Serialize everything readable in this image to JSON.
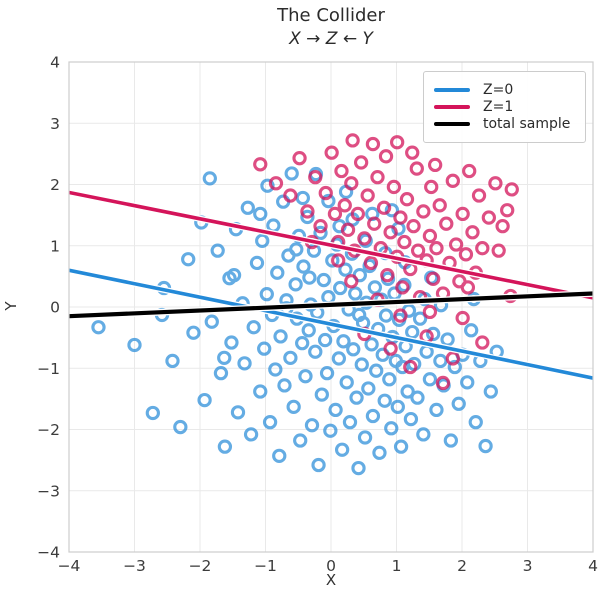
{
  "title": "The Collider",
  "subtitle": "X → Z ← Y",
  "chart_data": {
    "type": "scatter",
    "title": "The Collider",
    "subtitle": "X → Z ← Y",
    "xlabel": "X",
    "ylabel": "Y",
    "xlim": [
      -4,
      4
    ],
    "ylim": [
      -4,
      4
    ],
    "xticks": [
      -4,
      -3,
      -2,
      -1,
      0,
      1,
      2,
      3,
      4
    ],
    "yticks": [
      -4,
      -3,
      -2,
      -1,
      0,
      1,
      2,
      3,
      4
    ],
    "xtick_labels": [
      "−4",
      "−3",
      "−2",
      "−1",
      "0",
      "1",
      "2",
      "3",
      "4"
    ],
    "ytick_labels": [
      "−4",
      "−3",
      "−2",
      "−1",
      "0",
      "1",
      "2",
      "3",
      "4"
    ],
    "grid": true,
    "legend_position": "upper right",
    "colors": {
      "background": "#ffffff",
      "grid": "#e9e9e9",
      "spine": "#cdcdcd",
      "text": "#2b2b2b",
      "tick_text": "#3c3c3c",
      "blue": "#2389d8",
      "crimson": "#d4145a",
      "black": "#000000",
      "legend_border": "#cccccc"
    },
    "marker": {
      "shape": "open-circle",
      "radius": 5.6,
      "stroke_width": 3.1
    },
    "series": [
      {
        "name": "Z=0",
        "color": "#2389d8",
        "marker_opacity": 0.7,
        "points": [
          [
            -3.55,
            -0.33
          ],
          [
            -3.0,
            -0.62
          ],
          [
            -2.72,
            -1.73
          ],
          [
            -2.55,
            0.31
          ],
          [
            -2.42,
            -0.88
          ],
          [
            -2.3,
            -1.96
          ],
          [
            -2.18,
            0.78
          ],
          [
            -2.1,
            -0.42
          ],
          [
            -1.98,
            1.38
          ],
          [
            -1.93,
            -1.52
          ],
          [
            -1.85,
            2.1
          ],
          [
            -1.82,
            -0.24
          ],
          [
            -1.73,
            0.92
          ],
          [
            -1.68,
            -1.08
          ],
          [
            -1.62,
            -2.28
          ],
          [
            -1.55,
            0.47
          ],
          [
            -1.52,
            -0.58
          ],
          [
            -1.45,
            1.27
          ],
          [
            -1.42,
            -1.72
          ],
          [
            -1.35,
            0.06
          ],
          [
            -1.32,
            -0.92
          ],
          [
            -1.27,
            1.62
          ],
          [
            -1.22,
            -2.08
          ],
          [
            -1.18,
            -0.33
          ],
          [
            -1.13,
            0.72
          ],
          [
            -1.08,
            -1.38
          ],
          [
            -1.05,
            1.08
          ],
          [
            -1.02,
            -0.68
          ],
          [
            -0.98,
            0.21
          ],
          [
            -0.97,
            1.98
          ],
          [
            -0.93,
            -1.88
          ],
          [
            -0.9,
            -0.13
          ],
          [
            -0.88,
            1.33
          ],
          [
            -0.85,
            -1.02
          ],
          [
            -0.82,
            0.56
          ],
          [
            -0.79,
            -2.43
          ],
          [
            -0.77,
            -0.48
          ],
          [
            -0.73,
            1.72
          ],
          [
            -0.71,
            -1.28
          ],
          [
            -0.68,
            0.11
          ],
          [
            -0.65,
            0.84
          ],
          [
            -0.62,
            -0.83
          ],
          [
            -0.6,
            2.18
          ],
          [
            -0.57,
            -1.63
          ],
          [
            -0.54,
            0.37
          ],
          [
            -0.52,
            -0.19
          ],
          [
            -0.49,
            1.16
          ],
          [
            -0.47,
            -2.18
          ],
          [
            -0.44,
            -0.59
          ],
          [
            -0.42,
            0.66
          ],
          [
            -0.39,
            -1.13
          ],
          [
            -0.36,
            1.47
          ],
          [
            -0.34,
            -0.38
          ],
          [
            -0.31,
            0.04
          ],
          [
            -0.29,
            -1.93
          ],
          [
            -0.26,
            0.92
          ],
          [
            -0.24,
            -0.73
          ],
          [
            -0.21,
            -0.09
          ],
          [
            -0.19,
            -2.58
          ],
          [
            -0.16,
            1.21
          ],
          [
            -0.14,
            -1.43
          ],
          [
            -0.11,
            0.44
          ],
          [
            -0.09,
            -0.54
          ],
          [
            -0.06,
            -1.08
          ],
          [
            -0.04,
            0.16
          ],
          [
            -0.01,
            -2.02
          ],
          [
            0.02,
            0.76
          ],
          [
            0.04,
            -0.31
          ],
          [
            0.07,
            -1.68
          ],
          [
            0.09,
            1.02
          ],
          [
            0.12,
            -0.84
          ],
          [
            0.14,
            0.31
          ],
          [
            0.17,
            -2.33
          ],
          [
            0.19,
            -0.56
          ],
          [
            0.22,
            0.61
          ],
          [
            0.24,
            -1.23
          ],
          [
            0.27,
            -0.04
          ],
          [
            0.29,
            -1.88
          ],
          [
            0.32,
            0.87
          ],
          [
            0.34,
            -0.69
          ],
          [
            0.37,
            0.22
          ],
          [
            0.39,
            -1.48
          ],
          [
            0.42,
            -2.63
          ],
          [
            0.44,
            0.52
          ],
          [
            0.47,
            -0.94
          ],
          [
            0.49,
            -0.26
          ],
          [
            0.52,
            -2.13
          ],
          [
            0.54,
            0.07
          ],
          [
            0.57,
            -1.33
          ],
          [
            0.59,
            0.67
          ],
          [
            0.62,
            -0.61
          ],
          [
            0.64,
            -1.78
          ],
          [
            0.67,
            0.32
          ],
          [
            0.69,
            -1.04
          ],
          [
            0.72,
            -0.36
          ],
          [
            0.74,
            -2.38
          ],
          [
            0.77,
            0.12
          ],
          [
            0.79,
            -0.78
          ],
          [
            0.82,
            -1.53
          ],
          [
            0.84,
            -0.14
          ],
          [
            0.87,
            0.46
          ],
          [
            0.89,
            -1.18
          ],
          [
            0.92,
            -1.98
          ],
          [
            0.94,
            -0.49
          ],
          [
            0.97,
            0.22
          ],
          [
            0.99,
            -0.88
          ],
          [
            1.02,
            -1.63
          ],
          [
            1.04,
            -0.21
          ],
          [
            1.07,
            -2.28
          ],
          [
            1.09,
            -0.98
          ],
          [
            1.12,
            0.36
          ],
          [
            1.14,
            -0.64
          ],
          [
            1.17,
            -1.38
          ],
          [
            1.19,
            -0.06
          ],
          [
            1.22,
            -1.83
          ],
          [
            1.24,
            -0.41
          ],
          [
            1.27,
            -0.93
          ],
          [
            1.32,
            -1.48
          ],
          [
            1.36,
            -0.19
          ],
          [
            1.41,
            -2.08
          ],
          [
            1.46,
            -0.73
          ],
          [
            1.51,
            -1.18
          ],
          [
            1.56,
            -0.44
          ],
          [
            1.61,
            -1.68
          ],
          [
            1.67,
            -0.88
          ],
          [
            1.72,
            -1.28
          ],
          [
            1.78,
            -0.53
          ],
          [
            1.83,
            -2.18
          ],
          [
            1.89,
            -0.98
          ],
          [
            1.95,
            -1.58
          ],
          [
            2.01,
            -0.78
          ],
          [
            2.08,
            -1.23
          ],
          [
            2.14,
            -0.38
          ],
          [
            2.21,
            -1.88
          ],
          [
            2.28,
            -0.88
          ],
          [
            2.36,
            -2.27
          ],
          [
            2.44,
            -1.38
          ],
          [
            2.53,
            -0.73
          ],
          [
            0.33,
            1.43
          ],
          [
            -0.04,
            1.73
          ],
          [
            0.53,
            1.08
          ],
          [
            0.83,
            0.88
          ],
          [
            1.13,
            0.73
          ],
          [
            -1.48,
            0.52
          ],
          [
            0.23,
            1.88
          ],
          [
            -0.53,
            0.94
          ],
          [
            1.43,
            0.13
          ],
          [
            -1.08,
            1.52
          ],
          [
            -0.33,
            0.48
          ],
          [
            -0.68,
            -0.02
          ],
          [
            0.43,
            -0.13
          ],
          [
            -1.63,
            -0.83
          ],
          [
            1.53,
            0.48
          ],
          [
            -0.23,
            2.17
          ],
          [
            2.18,
            0.13
          ],
          [
            -2.58,
            -0.13
          ],
          [
            1.03,
            1.28
          ],
          [
            1.68,
            0.03
          ],
          [
            0.93,
            1.58
          ],
          [
            0.13,
            1.32
          ],
          [
            -0.43,
            1.78
          ],
          [
            0.63,
            1.52
          ]
        ]
      },
      {
        "name": "Z=1",
        "color": "#d4145a",
        "marker_opacity": 0.75,
        "points": [
          [
            -1.08,
            2.33
          ],
          [
            -0.84,
            2.02
          ],
          [
            -0.62,
            1.82
          ],
          [
            -0.48,
            2.43
          ],
          [
            -0.36,
            1.56
          ],
          [
            -0.24,
            2.12
          ],
          [
            -0.16,
            1.32
          ],
          [
            -0.08,
            1.86
          ],
          [
            0.01,
            2.52
          ],
          [
            0.06,
            1.52
          ],
          [
            0.11,
            1.06
          ],
          [
            0.16,
            2.22
          ],
          [
            0.21,
            1.66
          ],
          [
            0.26,
            1.26
          ],
          [
            0.31,
            2.02
          ],
          [
            0.33,
            2.72
          ],
          [
            0.36,
            0.92
          ],
          [
            0.41,
            1.52
          ],
          [
            0.46,
            2.36
          ],
          [
            0.51,
            1.12
          ],
          [
            0.56,
            1.82
          ],
          [
            0.61,
            0.72
          ],
          [
            0.64,
            2.66
          ],
          [
            0.66,
            1.36
          ],
          [
            0.71,
            2.12
          ],
          [
            0.76,
            0.96
          ],
          [
            0.81,
            1.62
          ],
          [
            0.84,
            2.46
          ],
          [
            0.86,
            0.52
          ],
          [
            0.91,
            1.22
          ],
          [
            0.96,
            1.96
          ],
          [
            1.01,
            2.69
          ],
          [
            1.01,
            0.82
          ],
          [
            1.06,
            1.46
          ],
          [
            1.09,
            0.32
          ],
          [
            1.12,
            1.06
          ],
          [
            1.16,
            1.76
          ],
          [
            1.21,
            0.62
          ],
          [
            1.24,
            2.52
          ],
          [
            1.26,
            1.32
          ],
          [
            1.31,
            2.26
          ],
          [
            1.33,
            0.92
          ],
          [
            1.36,
            0.16
          ],
          [
            1.41,
            1.56
          ],
          [
            1.46,
            0.76
          ],
          [
            1.51,
            1.16
          ],
          [
            1.53,
            1.96
          ],
          [
            1.56,
            0.46
          ],
          [
            1.59,
            2.32
          ],
          [
            1.61,
            0.96
          ],
          [
            1.66,
            1.66
          ],
          [
            1.71,
            0.22
          ],
          [
            1.76,
            1.36
          ],
          [
            1.81,
            0.72
          ],
          [
            1.86,
            2.06
          ],
          [
            1.91,
            1.02
          ],
          [
            1.96,
            0.42
          ],
          [
            2.01,
            1.52
          ],
          [
            2.06,
            0.86
          ],
          [
            2.11,
            2.22
          ],
          [
            2.16,
            1.22
          ],
          [
            2.21,
            0.56
          ],
          [
            2.26,
            1.82
          ],
          [
            2.31,
            0.96
          ],
          [
            2.41,
            1.46
          ],
          [
            2.51,
            2.02
          ],
          [
            2.56,
            0.92
          ],
          [
            2.62,
            1.32
          ],
          [
            2.76,
            1.92
          ],
          [
            2.69,
            1.58
          ],
          [
            0.51,
            -0.44
          ],
          [
            0.91,
            -0.68
          ],
          [
            1.21,
            -0.98
          ],
          [
            1.46,
            -0.48
          ],
          [
            1.71,
            -1.24
          ],
          [
            2.01,
            -0.18
          ],
          [
            2.31,
            -0.58
          ],
          [
            2.74,
            0.18
          ],
          [
            0.31,
            0.42
          ],
          [
            0.71,
            0.12
          ],
          [
            1.06,
            -0.14
          ],
          [
            1.51,
            -0.08
          ],
          [
            1.86,
            -0.84
          ],
          [
            0.11,
            0.76
          ],
          [
            -0.29,
            1.06
          ],
          [
            2.09,
            0.32
          ]
        ]
      }
    ],
    "fit_lines": [
      {
        "name": "Z=0",
        "color": "#2389d8",
        "x": [
          -4,
          4
        ],
        "y": [
          0.6,
          -1.16
        ],
        "width": 3.6
      },
      {
        "name": "Z=1",
        "color": "#d4145a",
        "x": [
          -4,
          4
        ],
        "y": [
          1.87,
          0.15
        ],
        "width": 3.6
      },
      {
        "name": "total sample",
        "color": "#000000",
        "x": [
          -4,
          4
        ],
        "y": [
          -0.15,
          0.22
        ],
        "width": 4.2
      }
    ],
    "legend": [
      {
        "label": "Z=0",
        "color": "#2389d8"
      },
      {
        "label": "Z=1",
        "color": "#d4145a"
      },
      {
        "label": "total sample",
        "color": "#000000"
      }
    ]
  }
}
